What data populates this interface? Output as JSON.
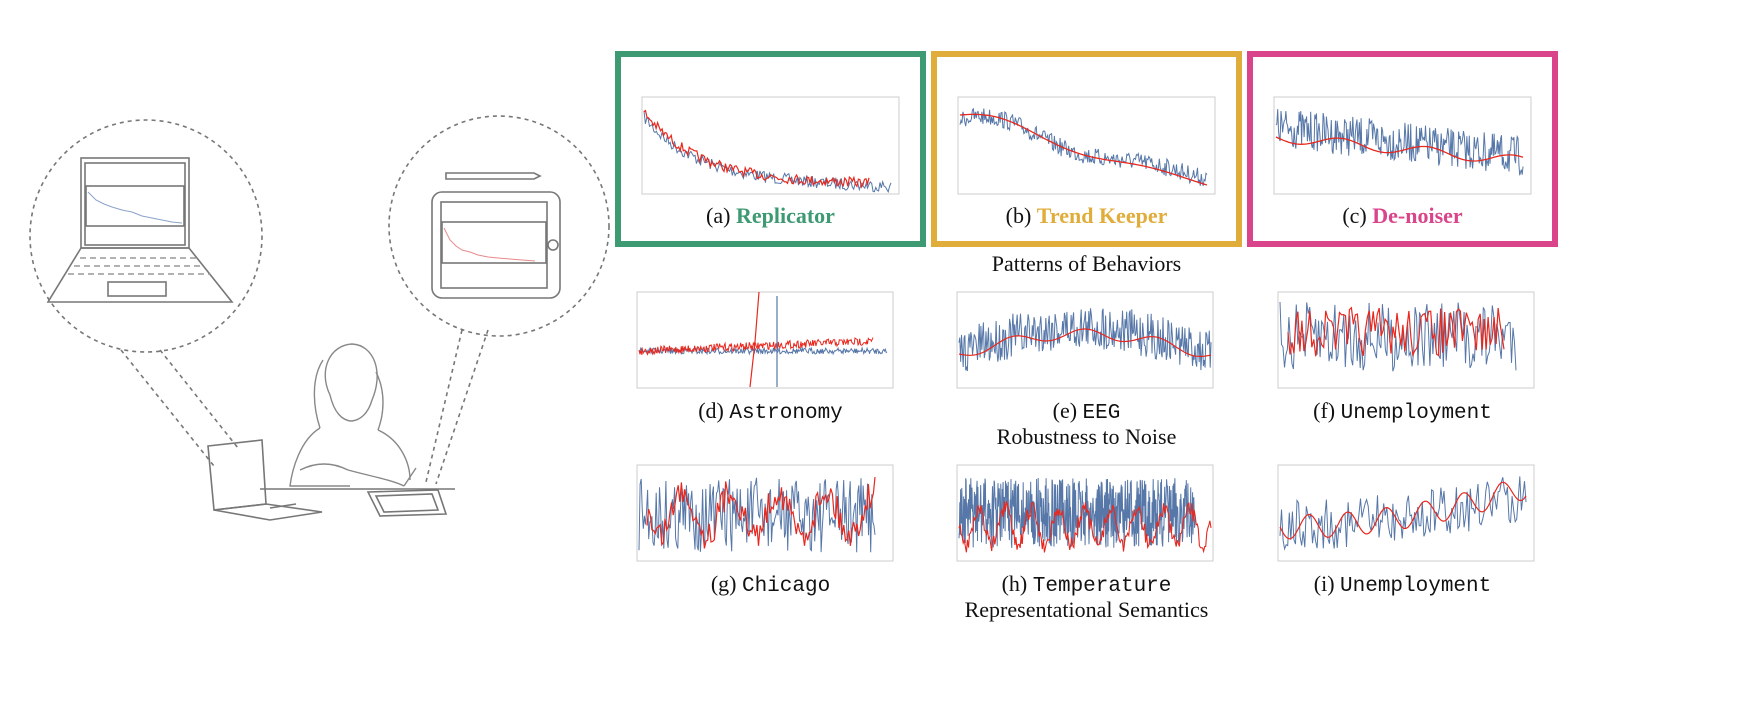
{
  "colors": {
    "replicator": "#3e9a72",
    "trend_keeper": "#e0ad3b",
    "de_noiser": "#d9448a",
    "series_blue": "#5677a8",
    "series_red": "#e8281e",
    "sketch_line": "#777777"
  },
  "illustration": {
    "description_icon": "person-with-laptop-and-tablet-icon"
  },
  "panels": [
    {
      "id": "a",
      "letter": "(a)",
      "name": "Replicator",
      "name_style": "bold-colored",
      "color_key": "replicator",
      "framed": true
    },
    {
      "id": "b",
      "letter": "(b)",
      "name": "Trend Keeper",
      "name_style": "bold-colored",
      "color_key": "trend_keeper",
      "framed": true
    },
    {
      "id": "c",
      "letter": "(c)",
      "name": "De-noiser",
      "name_style": "bold-colored",
      "color_key": "de_noiser",
      "framed": true
    },
    {
      "id": "d",
      "letter": "(d)",
      "name": "Astronomy",
      "name_style": "mono"
    },
    {
      "id": "e",
      "letter": "(e)",
      "name": "EEG",
      "name_style": "mono"
    },
    {
      "id": "f",
      "letter": "(f)",
      "name": "Unemployment",
      "name_style": "mono"
    },
    {
      "id": "g",
      "letter": "(g)",
      "name": "Chicago",
      "name_style": "mono"
    },
    {
      "id": "h",
      "letter": "(h)",
      "name": "Temperature",
      "name_style": "mono"
    },
    {
      "id": "i",
      "letter": "(i)",
      "name": "Unemployment",
      "name_style": "mono"
    }
  ],
  "sections": {
    "row1": "Patterns of Behaviors",
    "row2": "Robustness to Noise",
    "row3": "Representational Semantics"
  }
}
